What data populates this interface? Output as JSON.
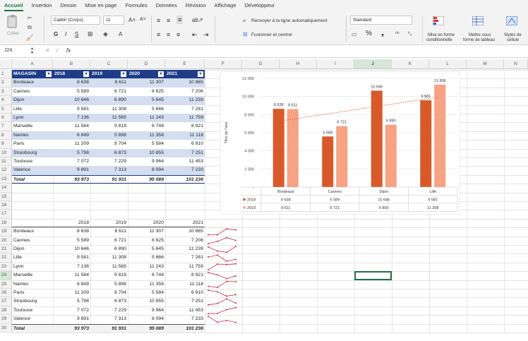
{
  "tabs": [
    "Accueil",
    "Insertion",
    "Dessin",
    "Mise en page",
    "Formules",
    "Données",
    "Révision",
    "Affichage",
    "Développeur"
  ],
  "ribbon": {
    "paste_label": "Coller",
    "font_name": "Calibri (Corps)",
    "font_size": "11",
    "wrap_label": "Renvoyer à la ligne automatiquement",
    "merge_label": "Fusionner et centrer",
    "number_format": "Standard",
    "cond_format_label_1": "Mise en forme",
    "cond_format_label_2": "conditionnelle",
    "table_format_label_1": "Mettre sous",
    "table_format_label_2": "forme de tableau",
    "cell_styles_label_1": "Styles de",
    "cell_styles_label_2": "cellule",
    "percent": "%",
    "thousands": "❟"
  },
  "formula_bar": {
    "name_box": "J24",
    "fx": "fx",
    "content": ""
  },
  "columns": [
    "A",
    "B",
    "C",
    "D",
    "E",
    "F",
    "G",
    "H",
    "I",
    "J",
    "K",
    "L",
    "M",
    "N"
  ],
  "rows": [
    "1",
    "2",
    "3",
    "4",
    "5",
    "6",
    "7",
    "8",
    "9",
    "10",
    "11",
    "12",
    "13",
    "14",
    "15",
    "16",
    "17",
    "18",
    "19",
    "20",
    "21",
    "22",
    "23",
    "24",
    "25",
    "26",
    "27",
    "28",
    "29",
    "30"
  ],
  "table1": {
    "headers": [
      "MAGASIN",
      "2018",
      "2019",
      "2020",
      "2021"
    ],
    "rows": [
      [
        "Bordeaux",
        "8 638",
        "8 611",
        "11 307",
        "10 865"
      ],
      [
        "Cannes",
        "5 589",
        "6 721",
        "8 625",
        "7 206"
      ],
      [
        "Dijon",
        "10 646",
        "6 890",
        "5 645",
        "11 239"
      ],
      [
        "Lille",
        "9 581",
        "11 308",
        "5 666",
        "7 281"
      ],
      [
        "Lyon",
        "7 136",
        "11 565",
        "11 243",
        "11 759"
      ],
      [
        "Marseille",
        "11 564",
        "9 819",
        "6 748",
        "8 921"
      ],
      [
        "Nantes",
        "6 849",
        "5 898",
        "11 358",
        "11 118"
      ],
      [
        "Paris",
        "11 209",
        "9 704",
        "5 584",
        "6 910"
      ],
      [
        "Strasbourg",
        "5 798",
        "6 873",
        "10 855",
        "7 251"
      ],
      [
        "Toulouse",
        "7 072",
        "7 229",
        "9 964",
        "11 453"
      ],
      [
        "Valence",
        "9 891",
        "7 313",
        "8 094",
        "7 233"
      ]
    ],
    "total": [
      "Total",
      "93 973",
      "91 931",
      "95 089",
      "101 236"
    ]
  },
  "table2": {
    "headers": [
      "",
      "2018",
      "2019",
      "2020",
      "2021"
    ],
    "rows": [
      [
        "Bordeaux",
        "8 638",
        "8 611",
        "11 307",
        "10 865"
      ],
      [
        "Cannes",
        "5 589",
        "6 721",
        "8 625",
        "7 206"
      ],
      [
        "Dijon",
        "10 646",
        "6 890",
        "5 645",
        "11 239"
      ],
      [
        "Lille",
        "9 581",
        "11 308",
        "5 666",
        "7 281"
      ],
      [
        "Lyon",
        "7 136",
        "11 565",
        "11 243",
        "11 759"
      ],
      [
        "Marseille",
        "11 564",
        "9 819",
        "6 748",
        "8 921"
      ],
      [
        "Nantes",
        "6 849",
        "5 898",
        "11 358",
        "11 118"
      ],
      [
        "Paris",
        "11 209",
        "9 704",
        "5 584",
        "6 910"
      ],
      [
        "Strasbourg",
        "5 798",
        "6 873",
        "10 855",
        "7 251"
      ],
      [
        "Toulouse",
        "7 072",
        "7 229",
        "9 964",
        "11 453"
      ],
      [
        "Valence",
        "9 891",
        "7 313",
        "8 094",
        "7 233"
      ]
    ],
    "total": [
      "Total",
      "93 973",
      "91 931",
      "95 089",
      "101 236"
    ]
  },
  "sparklines": [
    [
      8638,
      8611,
      11307,
      10865
    ],
    [
      5589,
      6721,
      8625,
      7206
    ],
    [
      10646,
      6890,
      5645,
      11239
    ],
    [
      9581,
      11308,
      5666,
      7281
    ],
    [
      7136,
      11565,
      11243,
      11759
    ],
    [
      11564,
      9819,
      6748,
      8921
    ],
    [
      6849,
      5898,
      11358,
      11118
    ],
    [
      11209,
      9704,
      5584,
      6910
    ],
    [
      5798,
      6873,
      10855,
      7251
    ],
    [
      7072,
      7229,
      9964,
      11453
    ],
    [
      9891,
      7313,
      8094,
      7233
    ]
  ],
  "colors": {
    "accent": "#1e7145",
    "header_fill": "#1f3c88",
    "band_fill": "#d4def0",
    "series_2018": "#d85a2a",
    "series_2019": "#f6a283",
    "sparkline": "#c0304a"
  },
  "chart_data": {
    "type": "bar",
    "categories": [
      "Bordeaux",
      "Cannes",
      "Dijon",
      "Lille"
    ],
    "series": [
      {
        "name": "2018",
        "values": [
          8638,
          5589,
          10646,
          9581
        ],
        "labels": [
          "8 638",
          "5 589",
          "10 646",
          "9 581"
        ]
      },
      {
        "name": "2019",
        "values": [
          8611,
          6721,
          6890,
          11308
        ],
        "labels": [
          "8 611",
          "6 721",
          "6 890",
          "11 308"
        ]
      }
    ],
    "ylabel": "Titre de l'axe",
    "ylim": [
      0,
      12000
    ],
    "yticks": [
      0,
      2000,
      4000,
      6000,
      8000,
      10000,
      12000
    ],
    "ytick_labels": [
      "-",
      "2 000",
      "4 000",
      "6 000",
      "8 000",
      "10 000",
      "12 000"
    ],
    "trendline": "2018",
    "data_table": true,
    "grid": true
  }
}
